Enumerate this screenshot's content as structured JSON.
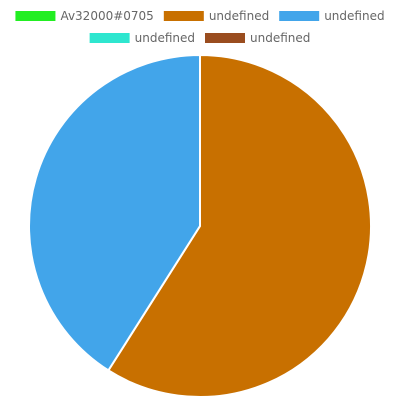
{
  "chart_data": {
    "type": "pie",
    "title": "",
    "legend_position": "top",
    "series": [
      {
        "labels": [
          "Av32000#0705",
          "undefined",
          "undefined",
          "undefined",
          "undefined"
        ],
        "values": [
          0,
          59,
          41,
          0,
          0
        ],
        "colors": [
          "#22ee22",
          "#c87000",
          "#42a5ea",
          "#2ee6cf",
          "#9a4d1f"
        ]
      }
    ]
  }
}
